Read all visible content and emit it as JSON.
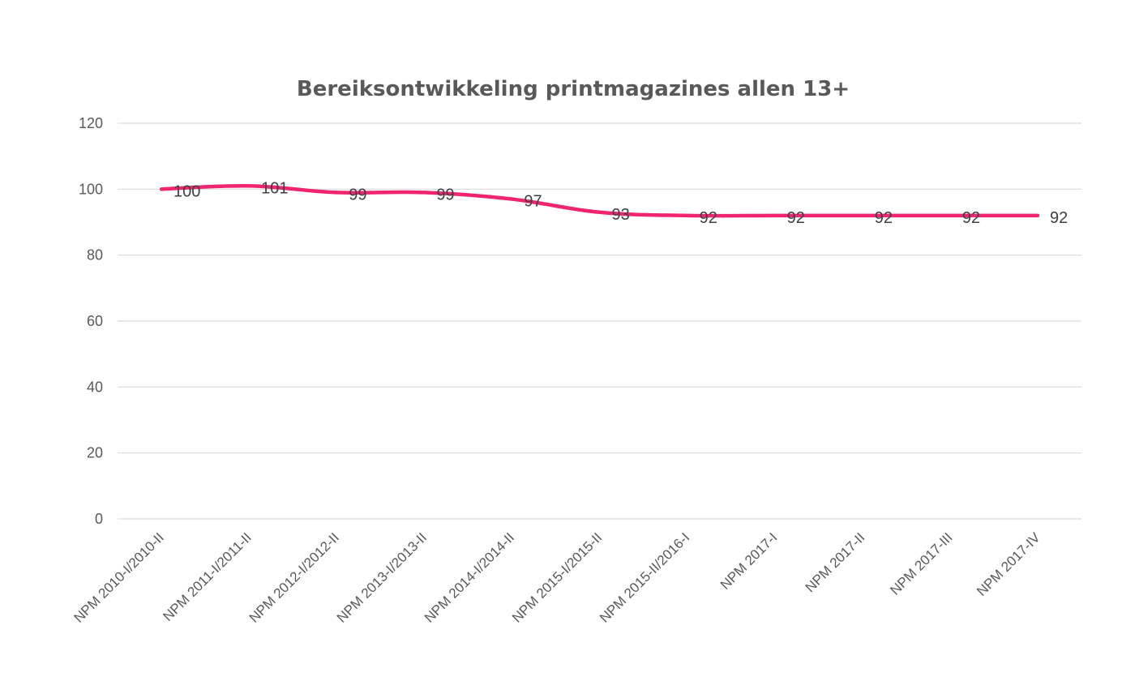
{
  "chart_data": {
    "type": "line",
    "title": "Bereiksontwikkeling printmagazines allen 13+",
    "xlabel": "",
    "ylabel": "",
    "categories": [
      "NPM 2010-I/2010-II",
      "NPM 2011-I/2011-II",
      "NPM 2012-I/2012-II",
      "NPM 2013-I/2013-II",
      "NPM 2014-I/2014-II",
      "NPM 2015-I/2015-II",
      "NPM 2015-II/2016-I",
      "NPM 2017-I",
      "NPM 2017-II",
      "NPM 2017-III",
      "NPM 2017-IV"
    ],
    "series": [
      {
        "values": [
          100,
          101,
          99,
          99,
          97,
          93,
          92,
          92,
          92,
          92,
          92
        ],
        "color": "#f0246f"
      }
    ],
    "data_labels": [
      "100",
      "101",
      "99",
      "99",
      "97",
      "93",
      "92",
      "92",
      "92",
      "92",
      "92"
    ],
    "ylim": [
      0,
      120
    ],
    "yticks": [
      "0",
      "20",
      "40",
      "60",
      "80",
      "100",
      "120"
    ],
    "grid": true,
    "legend": "none"
  }
}
